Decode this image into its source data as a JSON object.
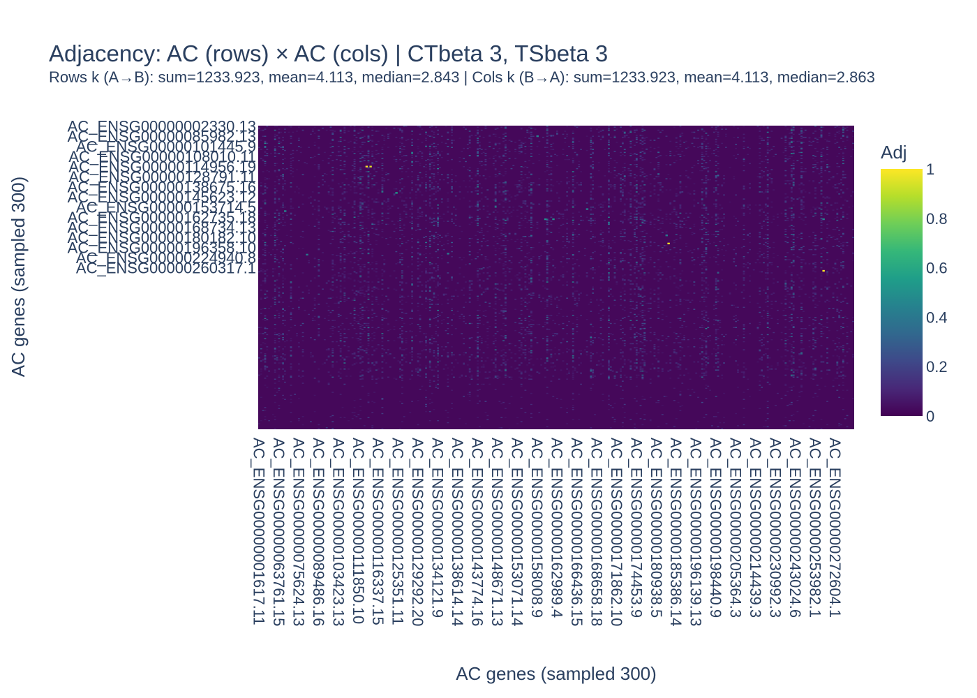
{
  "chart_data": {
    "type": "heatmap",
    "title": "Adjacency: AC (rows) × AC (cols) | CTbeta 3, TSbeta 3",
    "subtitle": "Rows k (A→B): sum=1233.923, mean=4.113, median=2.843 | Cols k (B→A): sum=1233.923, mean=4.113, median=2.863",
    "xlabel": "AC genes (sampled 300)",
    "ylabel": "AC genes (sampled 300)",
    "n_rows": 300,
    "n_cols": 300,
    "colorscale": "Viridis",
    "colorscale_stops": [
      "#440154",
      "#482878",
      "#3e4989",
      "#31688e",
      "#26828e",
      "#1f9e89",
      "#35b779",
      "#6ece58",
      "#b5de2b",
      "#fde725"
    ],
    "zlim": [
      0,
      1
    ],
    "colorbar": {
      "title": "Adj",
      "ticks": [
        0,
        0.2,
        0.4,
        0.6,
        0.8,
        1
      ],
      "tick_labels": [
        "0",
        "0.2",
        "0.4",
        "0.6",
        "0.8",
        "1"
      ]
    },
    "y_tick_labels": [
      "AC_ENSG00000002330.13",
      "AC_ENSG00000085982.13",
      "AC_ENSG00000101445.9",
      "AC_ENSG00000108010.11",
      "AC_ENSG00000114956.19",
      "AC_ENSG00000128791.11",
      "AC_ENSG00000138675.16",
      "AC_ENSG00000145623.12",
      "AC_ENSG00000153714.5",
      "AC_ENSG00000162735.18",
      "AC_ENSG00000168734.13",
      "AC_ENSG00000180182.10",
      "AC_ENSG00000196358.10",
      "AC_ENSG00000224940.8",
      "AC_ENSG00000260317.1"
    ],
    "x_tick_labels": [
      "AC_ENSG00000001617.11",
      "AC_ENSG00000063761.15",
      "AC_ENSG00000075624.13",
      "AC_ENSG00000089486.16",
      "AC_ENSG00000103423.13",
      "AC_ENSG00000111850.10",
      "AC_ENSG00000116337.15",
      "AC_ENSG00000125351.11",
      "AC_ENSG00000129292.20",
      "AC_ENSG00000134121.9",
      "AC_ENSG00000138614.14",
      "AC_ENSG00000143774.16",
      "AC_ENSG00000148671.13",
      "AC_ENSG00000153071.14",
      "AC_ENSG00000158008.9",
      "AC_ENSG00000162989.4",
      "AC_ENSG00000166436.15",
      "AC_ENSG00000168658.18",
      "AC_ENSG00000171862.10",
      "AC_ENSG00000174453.9",
      "AC_ENSG00000180938.5",
      "AC_ENSG00000185386.14",
      "AC_ENSG00000196139.13",
      "AC_ENSG00000198440.9",
      "AC_ENSG00000205364.3",
      "AC_ENSG00000214439.3",
      "AC_ENSG00000230992.3",
      "AC_ENSG00000243024.6",
      "AC_ENSG00000253982.1",
      "AC_ENSG00000272604.1"
    ],
    "background_value": 0.02,
    "highlight_cells": [
      {
        "row": 40,
        "col": 54,
        "value": 1.0
      },
      {
        "row": 40,
        "col": 56,
        "value": 0.95
      },
      {
        "row": 116,
        "col": 206,
        "value": 1.0
      },
      {
        "row": 143,
        "col": 284,
        "value": 1.0
      },
      {
        "row": 66,
        "col": 69,
        "value": 0.55
      },
      {
        "row": 10,
        "col": 140,
        "value": 0.45
      },
      {
        "row": 82,
        "col": 165,
        "value": 0.45
      },
      {
        "row": 92,
        "col": 144,
        "value": 0.5
      },
      {
        "row": 92,
        "col": 148,
        "value": 0.5
      },
      {
        "row": 84,
        "col": 13,
        "value": 0.45
      },
      {
        "row": 92,
        "col": 284,
        "value": 0.45
      },
      {
        "row": 108,
        "col": 205,
        "value": 0.4
      },
      {
        "row": 127,
        "col": 24,
        "value": 0.4
      },
      {
        "row": 126,
        "col": 95,
        "value": 0.4
      }
    ]
  }
}
